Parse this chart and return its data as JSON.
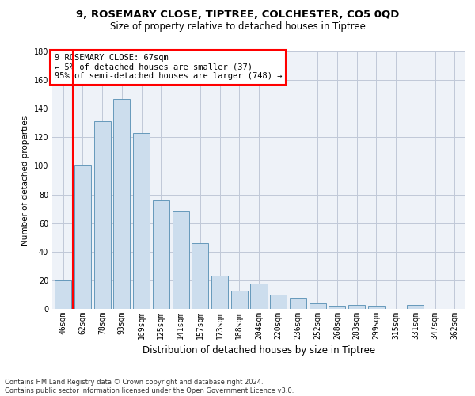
{
  "title_line1": "9, ROSEMARY CLOSE, TIPTREE, COLCHESTER, CO5 0QD",
  "title_line2": "Size of property relative to detached houses in Tiptree",
  "xlabel": "Distribution of detached houses by size in Tiptree",
  "ylabel": "Number of detached properties",
  "categories": [
    "46sqm",
    "62sqm",
    "78sqm",
    "93sqm",
    "109sqm",
    "125sqm",
    "141sqm",
    "157sqm",
    "173sqm",
    "188sqm",
    "204sqm",
    "220sqm",
    "236sqm",
    "252sqm",
    "268sqm",
    "283sqm",
    "299sqm",
    "315sqm",
    "331sqm",
    "347sqm",
    "362sqm"
  ],
  "values": [
    20,
    101,
    131,
    147,
    123,
    76,
    68,
    46,
    23,
    13,
    18,
    10,
    8,
    4,
    2,
    3,
    2,
    0,
    3,
    0,
    0
  ],
  "bar_color": "#ccdded",
  "bar_edge_color": "#6699bb",
  "red_line_x": 0.5,
  "annotation_title": "9 ROSEMARY CLOSE: 67sqm",
  "annotation_line2": "← 5% of detached houses are smaller (37)",
  "annotation_line3": "95% of semi-detached houses are larger (748) →",
  "ylim": [
    0,
    180
  ],
  "yticks": [
    0,
    20,
    40,
    60,
    80,
    100,
    120,
    140,
    160,
    180
  ],
  "footer_line1": "Contains HM Land Registry data © Crown copyright and database right 2024.",
  "footer_line2": "Contains public sector information licensed under the Open Government Licence v3.0.",
  "background_color": "#eef2f8",
  "grid_color": "#c0c8d8",
  "title_fontsize": 9.5,
  "subtitle_fontsize": 8.5,
  "xlabel_fontsize": 8.5,
  "ylabel_fontsize": 7.5,
  "tick_fontsize": 7,
  "ann_fontsize": 7.5,
  "footer_fontsize": 6
}
